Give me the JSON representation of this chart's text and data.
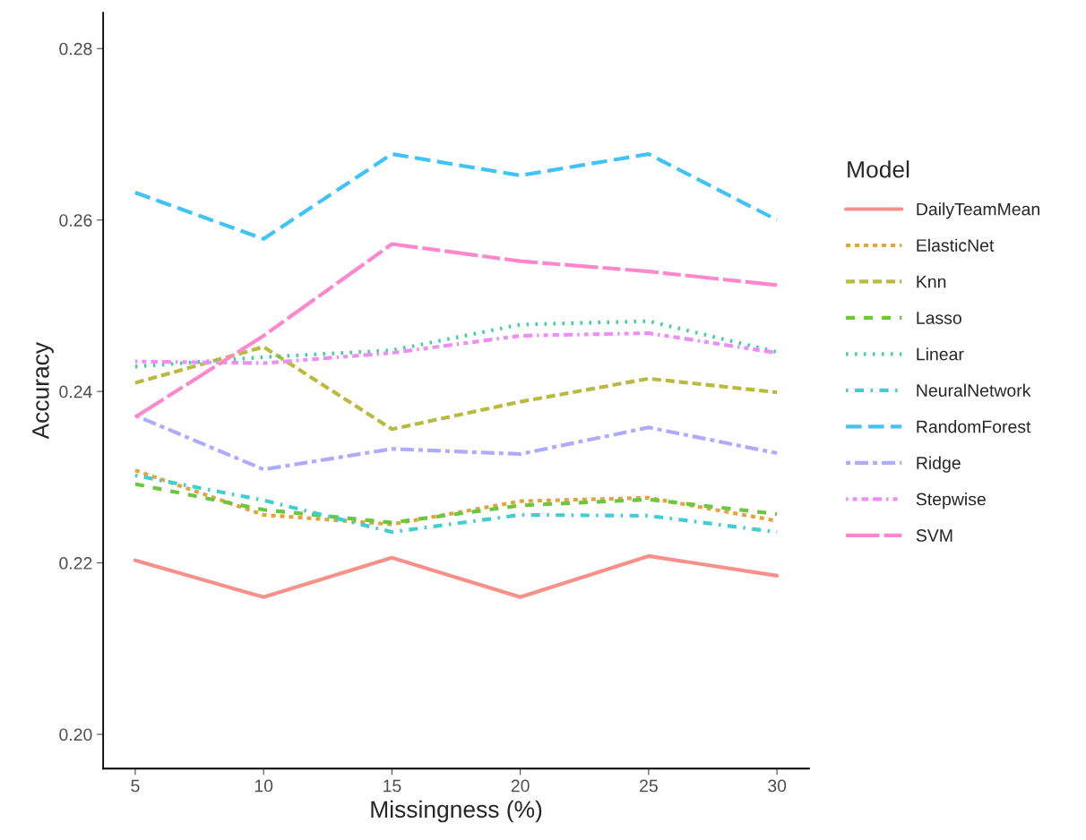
{
  "chart_data": {
    "type": "line",
    "xlabel": "Missingness (%)",
    "ylabel": "Accuracy",
    "legend_title": "Model",
    "x": [
      5,
      10,
      15,
      20,
      25,
      30
    ],
    "xlim": [
      3.75,
      31.25
    ],
    "xticks": [
      5,
      10,
      15,
      20,
      25,
      30
    ],
    "ylim": [
      0.196,
      0.2842
    ],
    "yticks": [
      {
        "value": 0.2,
        "label": "0.20"
      },
      {
        "value": 0.22,
        "label": "0.22"
      },
      {
        "value": 0.24,
        "label": "0.24"
      },
      {
        "value": 0.26,
        "label": "0.26"
      },
      {
        "value": 0.28,
        "label": "0.28"
      }
    ],
    "grid": false,
    "legend": "right",
    "series": [
      {
        "name": "DailyTeamMean",
        "color": "#f9908a",
        "line_style": "solid",
        "values": [
          0.2203,
          0.216,
          0.2206,
          0.216,
          0.2208,
          0.2185
        ]
      },
      {
        "name": "ElasticNet",
        "color": "#e0a53f",
        "line_style": "22",
        "values": [
          0.2308,
          0.2256,
          0.2245,
          0.2272,
          0.2276,
          0.2249
        ]
      },
      {
        "name": "Knn",
        "color": "#b9bb3f",
        "line_style": "42",
        "values": [
          0.241,
          0.2452,
          0.2356,
          0.2388,
          0.2415,
          0.2399
        ]
      },
      {
        "name": "Lasso",
        "color": "#6ac73f",
        "line_style": "44",
        "values": [
          0.2292,
          0.2262,
          0.2247,
          0.2267,
          0.2274,
          0.2257
        ]
      },
      {
        "name": "Linear",
        "color": "#3fce9d",
        "line_style": "13",
        "values": [
          0.2429,
          0.244,
          0.2448,
          0.2478,
          0.2482,
          0.2446
        ]
      },
      {
        "name": "NeuralNetwork",
        "color": "#3fced2",
        "line_style": "1343",
        "values": [
          0.2302,
          0.2273,
          0.2236,
          0.2256,
          0.2255,
          0.2236
        ]
      },
      {
        "name": "RandomForest",
        "color": "#3fc3f8",
        "line_style": "73",
        "values": [
          0.2632,
          0.2578,
          0.2677,
          0.2652,
          0.2677,
          0.26
        ]
      },
      {
        "name": "Ridge",
        "color": "#afabff",
        "line_style": "2262",
        "values": [
          0.2372,
          0.2309,
          0.2333,
          0.2327,
          0.2358,
          0.2328
        ]
      },
      {
        "name": "Stepwise",
        "color": "#ed8ff6",
        "line_style": "12223242",
        "values": [
          0.2435,
          0.2433,
          0.2445,
          0.2465,
          0.2468,
          0.2445
        ]
      },
      {
        "name": "SVM",
        "color": "#ff88cc",
        "line_style": "F282",
        "values": [
          0.237,
          0.2465,
          0.2572,
          0.2552,
          0.254,
          0.2524
        ]
      }
    ]
  }
}
